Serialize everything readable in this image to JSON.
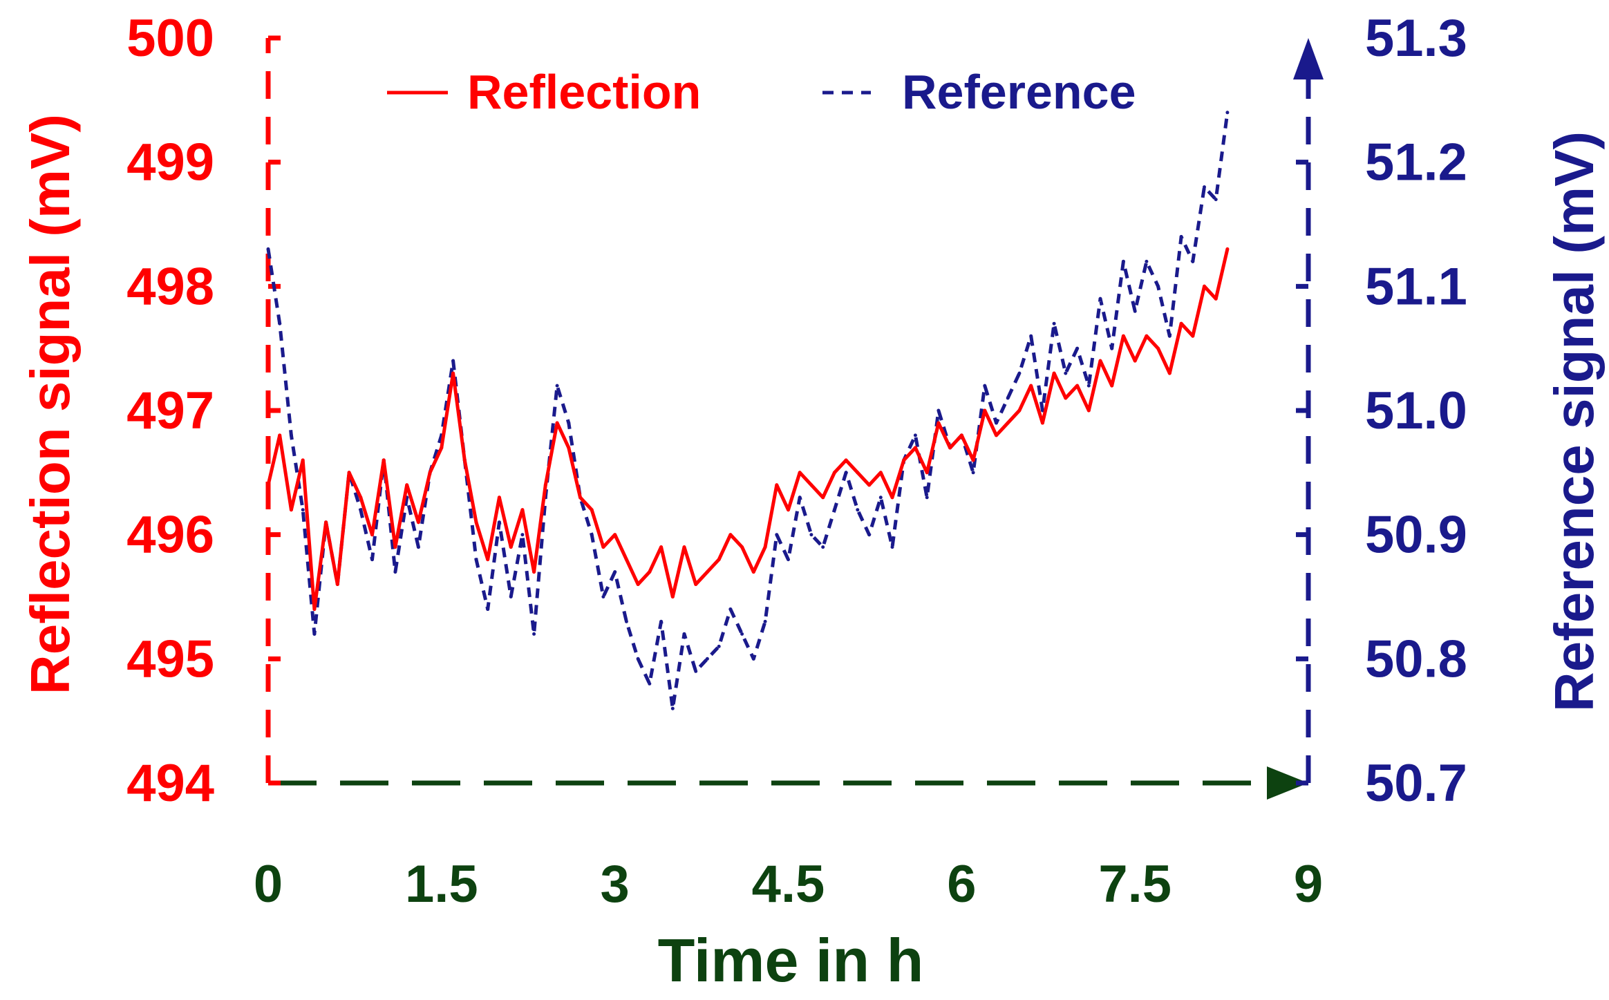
{
  "colors": {
    "left": "#ff0000",
    "right": "#1a1a8c",
    "x": "#0d4210",
    "reflection": "#ff0000",
    "reference": "#1a1a8c"
  },
  "chart_data": {
    "type": "line",
    "title": "",
    "xlabel": "Time in h",
    "ylabel": "Reflection signal (mV)",
    "ylabel_right": "Reference signal (mV)",
    "xlim": [
      0,
      9
    ],
    "ylim": [
      494,
      500
    ],
    "ylim_right": [
      50.7,
      51.3
    ],
    "grid": false,
    "legend_position": "top",
    "x_ticks": [
      "0",
      "1.5",
      "3",
      "4.5",
      "6",
      "7.5",
      "9"
    ],
    "y_ticks": [
      "494",
      "495",
      "496",
      "497",
      "498",
      "499",
      "500"
    ],
    "y_ticks_right": [
      "50.7",
      "50.8",
      "50.9",
      "51.0",
      "51.1",
      "51.2",
      "51.3"
    ],
    "series": [
      {
        "name": "Reflection",
        "axis": "left",
        "style": "solid",
        "x": [
          0,
          0.1,
          0.2,
          0.3,
          0.4,
          0.5,
          0.6,
          0.7,
          0.8,
          0.9,
          1.0,
          1.1,
          1.2,
          1.3,
          1.4,
          1.5,
          1.6,
          1.7,
          1.8,
          1.9,
          2.0,
          2.1,
          2.2,
          2.3,
          2.4,
          2.5,
          2.6,
          2.7,
          2.8,
          2.9,
          3.0,
          3.1,
          3.2,
          3.3,
          3.4,
          3.5,
          3.6,
          3.7,
          3.8,
          3.9,
          4.0,
          4.1,
          4.2,
          4.3,
          4.4,
          4.5,
          4.6,
          4.7,
          4.8,
          4.9,
          5.0,
          5.1,
          5.2,
          5.3,
          5.4,
          5.5,
          5.6,
          5.7,
          5.8,
          5.9,
          6.0,
          6.1,
          6.2,
          6.3,
          6.4,
          6.5,
          6.6,
          6.7,
          6.8,
          6.9,
          7.0,
          7.1,
          7.2,
          7.3,
          7.4,
          7.5,
          7.6,
          7.7,
          7.8,
          7.9,
          8.0,
          8.1,
          8.2,
          8.3
        ],
        "values": [
          496.4,
          496.8,
          496.2,
          496.6,
          495.4,
          496.1,
          495.6,
          496.5,
          496.3,
          496.0,
          496.6,
          495.9,
          496.4,
          496.1,
          496.5,
          496.7,
          497.3,
          496.6,
          496.1,
          495.8,
          496.3,
          495.9,
          496.2,
          495.7,
          496.4,
          496.9,
          496.7,
          496.3,
          496.2,
          495.9,
          496.0,
          495.8,
          495.6,
          495.7,
          495.9,
          495.5,
          495.9,
          495.6,
          495.7,
          495.8,
          496.0,
          495.9,
          495.7,
          495.9,
          496.4,
          496.2,
          496.5,
          496.4,
          496.3,
          496.5,
          496.6,
          496.5,
          496.4,
          496.5,
          496.3,
          496.6,
          496.7,
          496.5,
          496.9,
          496.7,
          496.8,
          496.6,
          497.0,
          496.8,
          496.9,
          497.0,
          497.2,
          496.9,
          497.3,
          497.1,
          497.2,
          497.0,
          497.4,
          497.2,
          497.6,
          497.4,
          497.6,
          497.5,
          497.3,
          497.7,
          497.6,
          498.0,
          497.9,
          498.3
        ]
      },
      {
        "name": "Reference",
        "axis": "right",
        "style": "dashed",
        "x": [
          0,
          0.1,
          0.2,
          0.3,
          0.4,
          0.5,
          0.6,
          0.7,
          0.8,
          0.9,
          1.0,
          1.1,
          1.2,
          1.3,
          1.4,
          1.5,
          1.6,
          1.7,
          1.8,
          1.9,
          2.0,
          2.1,
          2.2,
          2.3,
          2.4,
          2.5,
          2.6,
          2.7,
          2.8,
          2.9,
          3.0,
          3.1,
          3.2,
          3.3,
          3.4,
          3.5,
          3.6,
          3.7,
          3.8,
          3.9,
          4.0,
          4.1,
          4.2,
          4.3,
          4.4,
          4.5,
          4.6,
          4.7,
          4.8,
          4.9,
          5.0,
          5.1,
          5.2,
          5.3,
          5.4,
          5.5,
          5.6,
          5.7,
          5.8,
          5.9,
          6.0,
          6.1,
          6.2,
          6.3,
          6.4,
          6.5,
          6.6,
          6.7,
          6.8,
          6.9,
          7.0,
          7.1,
          7.2,
          7.3,
          7.4,
          7.5,
          7.6,
          7.7,
          7.8,
          7.9,
          8.0,
          8.1,
          8.2,
          8.3
        ],
        "values": [
          51.13,
          51.07,
          50.98,
          50.92,
          50.82,
          50.91,
          50.86,
          50.95,
          50.92,
          50.88,
          50.96,
          50.87,
          50.93,
          50.89,
          50.95,
          50.98,
          51.04,
          50.96,
          50.88,
          50.84,
          50.91,
          50.85,
          50.9,
          50.82,
          50.93,
          51.02,
          50.99,
          50.93,
          50.9,
          50.85,
          50.87,
          50.83,
          50.8,
          50.78,
          50.83,
          50.76,
          50.82,
          50.79,
          50.8,
          50.81,
          50.84,
          50.82,
          50.8,
          50.83,
          50.9,
          50.88,
          50.93,
          50.9,
          50.89,
          50.92,
          50.95,
          50.92,
          50.9,
          50.93,
          50.89,
          50.96,
          50.98,
          50.93,
          51.0,
          50.97,
          50.98,
          50.95,
          51.02,
          50.99,
          51.01,
          51.03,
          51.06,
          51.0,
          51.07,
          51.03,
          51.05,
          51.02,
          51.09,
          51.05,
          51.12,
          51.08,
          51.12,
          51.1,
          51.06,
          51.14,
          51.12,
          51.18,
          51.17,
          51.24
        ]
      }
    ]
  }
}
